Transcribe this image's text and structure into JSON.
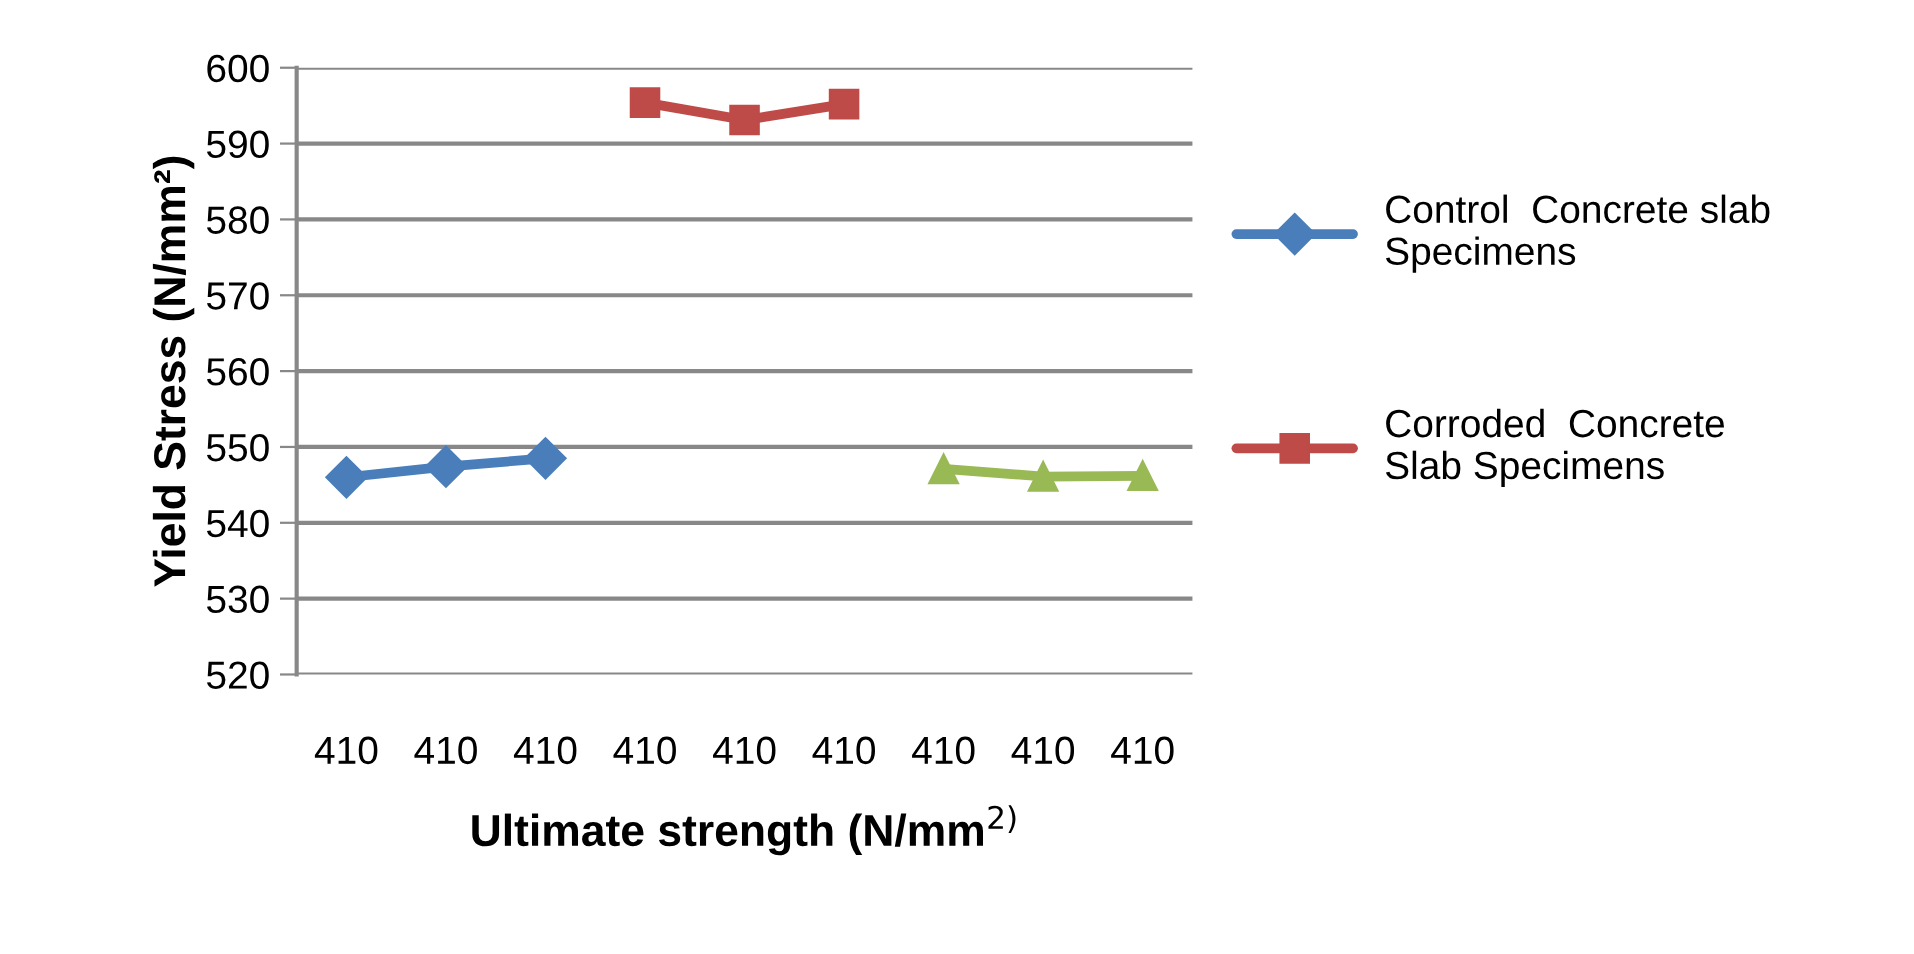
{
  "chart_data": {
    "type": "line",
    "xlabel": "Ultimate strength (N/mm$^{2)}$",
    "ylabel": "Yield Stress (N/mm²)",
    "categories": [
      "410",
      "410",
      "410",
      "410",
      "410",
      "410",
      "410",
      "410",
      "410"
    ],
    "series": [
      {
        "name": "Control  Concrete slab\nSpecimens",
        "color": "#4a7ebb",
        "marker": "diamond",
        "values": [
          546.0,
          547.4,
          548.5,
          null,
          null,
          null,
          null,
          null,
          null
        ]
      },
      {
        "name": "Corroded  Concrete\nSlab Specimens",
        "color": "#be4b48",
        "marker": "square",
        "values": [
          null,
          null,
          null,
          595.4,
          593.1,
          595.2,
          null,
          null,
          null
        ]
      },
      {
        "color": "#98b954",
        "marker": "triangle",
        "values": [
          null,
          null,
          null,
          null,
          null,
          null,
          547.1,
          546.1,
          546.2
        ]
      }
    ],
    "ylim": [
      520,
      600
    ],
    "yticks": [
      520,
      530,
      540,
      550,
      560,
      570,
      580,
      590,
      600
    ],
    "grid": "y",
    "legend": "right",
    "line_style": "solid"
  }
}
